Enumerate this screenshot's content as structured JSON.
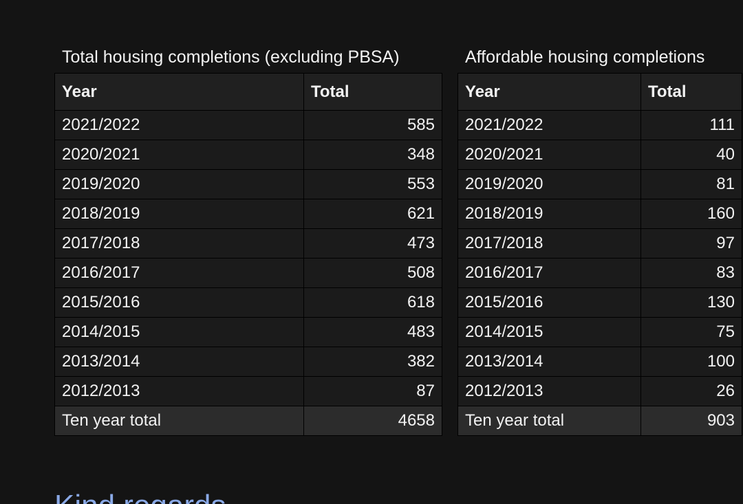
{
  "tables": [
    {
      "caption": "Total housing completions (excluding PBSA)",
      "headers": [
        "Year",
        "Total"
      ],
      "rows": [
        [
          "2021/2022",
          "585"
        ],
        [
          "2020/2021",
          "348"
        ],
        [
          "2019/2020",
          "553"
        ],
        [
          "2018/2019",
          "621"
        ],
        [
          "2017/2018",
          "473"
        ],
        [
          "2016/2017",
          "508"
        ],
        [
          "2015/2016",
          "618"
        ],
        [
          "2014/2015",
          "483"
        ],
        [
          "2013/2014",
          "382"
        ],
        [
          "2012/2013",
          "87"
        ]
      ],
      "total_row": [
        "Ten year total",
        "4658"
      ]
    },
    {
      "caption": "Affordable housing completions",
      "headers": [
        "Year",
        "Total"
      ],
      "rows": [
        [
          "2021/2022",
          "111"
        ],
        [
          "2020/2021",
          "40"
        ],
        [
          "2019/2020",
          "81"
        ],
        [
          "2018/2019",
          "160"
        ],
        [
          "2017/2018",
          "97"
        ],
        [
          "2016/2017",
          "83"
        ],
        [
          "2015/2016",
          "130"
        ],
        [
          "2014/2015",
          "75"
        ],
        [
          "2013/2014",
          "100"
        ],
        [
          "2012/2013",
          "26"
        ]
      ],
      "total_row": [
        "Ten year total",
        "903"
      ]
    }
  ],
  "closing_text": "Kind regards",
  "colors": {
    "background": "#141414",
    "header_cell": "#202020",
    "body_cell": "#1b1b1b",
    "total_cell": "#2c2c2c",
    "closing_link": "#8aa9e6"
  }
}
